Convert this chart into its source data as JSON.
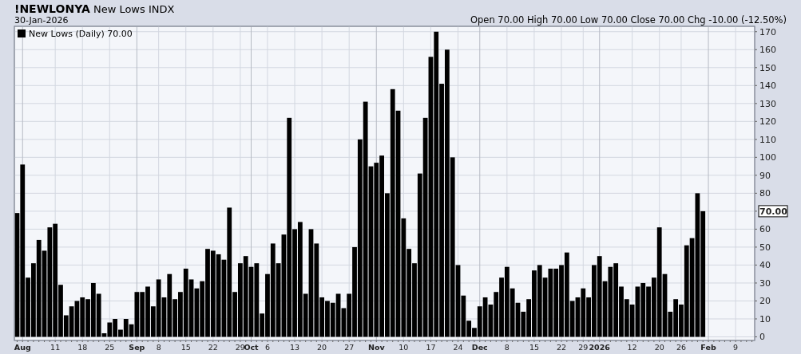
{
  "chart_data": {
    "type": "bar",
    "title": "!NEWLONYA New Lows INDX",
    "subtitle": "30-Jan-2026",
    "annotations": [
      "Open 70.00 High 70.00 Low 70.00 Close 70.00 Chg -10.00 (-12.50%)"
    ],
    "categories": [
      null,
      "Aug",
      null,
      null,
      null,
      null,
      null,
      "11",
      null,
      null,
      null,
      null,
      "18",
      null,
      null,
      null,
      null,
      "25",
      null,
      null,
      null,
      null,
      "Sep",
      null,
      null,
      null,
      "8",
      null,
      null,
      null,
      null,
      "15",
      null,
      null,
      null,
      null,
      "22",
      null,
      null,
      null,
      null,
      "29",
      null,
      "Oct",
      null,
      null,
      "6",
      null,
      null,
      null,
      null,
      "13",
      null,
      null,
      null,
      null,
      "20",
      null,
      null,
      null,
      null,
      "27",
      null,
      null,
      null,
      null,
      "Nov",
      null,
      null,
      null,
      null,
      "10",
      null,
      null,
      null,
      null,
      "17",
      null,
      null,
      null,
      null,
      "24",
      null,
      null,
      null,
      "Dec",
      null,
      null,
      null,
      null,
      "8",
      null,
      null,
      null,
      null,
      "15",
      null,
      null,
      null,
      null,
      "22",
      null,
      null,
      null,
      "29",
      null,
      null,
      "2026",
      null,
      null,
      null,
      null,
      null,
      "12",
      null,
      null,
      null,
      null,
      "20",
      null,
      null,
      null,
      "26",
      null,
      null,
      null,
      null,
      "Feb",
      null,
      null,
      null,
      null,
      "9",
      null,
      null,
      null
    ],
    "series": [
      {
        "name": "New Lows (Daily) 70.00",
        "color": "#000000",
        "values": [
          69,
          96,
          33,
          41,
          54,
          48,
          61,
          63,
          29,
          12,
          17,
          20,
          22,
          21,
          30,
          24,
          2,
          8,
          10,
          4,
          10,
          7,
          25,
          25,
          28,
          17,
          32,
          22,
          35,
          21,
          25,
          38,
          32,
          27,
          31,
          49,
          48,
          46,
          43,
          72,
          25,
          41,
          45,
          39,
          41,
          13,
          35,
          52,
          41,
          57,
          122,
          60,
          64,
          24,
          60,
          52,
          22,
          20,
          19,
          24,
          16,
          24,
          50,
          110,
          131,
          95,
          97,
          101,
          80,
          138,
          126,
          66,
          49,
          41,
          91,
          122,
          156,
          170,
          141,
          160,
          100,
          40,
          23,
          9,
          5,
          17,
          22,
          18,
          25,
          33,
          39,
          27,
          19,
          14,
          21,
          37,
          40,
          33,
          38,
          38,
          40,
          47,
          20,
          22,
          27,
          22,
          40,
          45,
          31,
          39,
          41,
          28,
          21,
          18,
          28,
          30,
          28,
          33,
          61,
          35,
          14,
          21,
          18,
          51,
          55,
          80,
          70,
          null,
          null,
          null,
          null,
          null,
          null,
          null,
          null,
          null
        ]
      }
    ],
    "ylim": [
      -2,
      173
    ],
    "yticks": [
      0,
      10,
      20,
      30,
      40,
      50,
      60,
      {
        "value": 70,
        "label": "70.00"
      },
      80,
      90,
      100,
      110,
      120,
      130,
      140,
      150,
      160,
      170
    ],
    "grid": true,
    "legend": "top left"
  }
}
